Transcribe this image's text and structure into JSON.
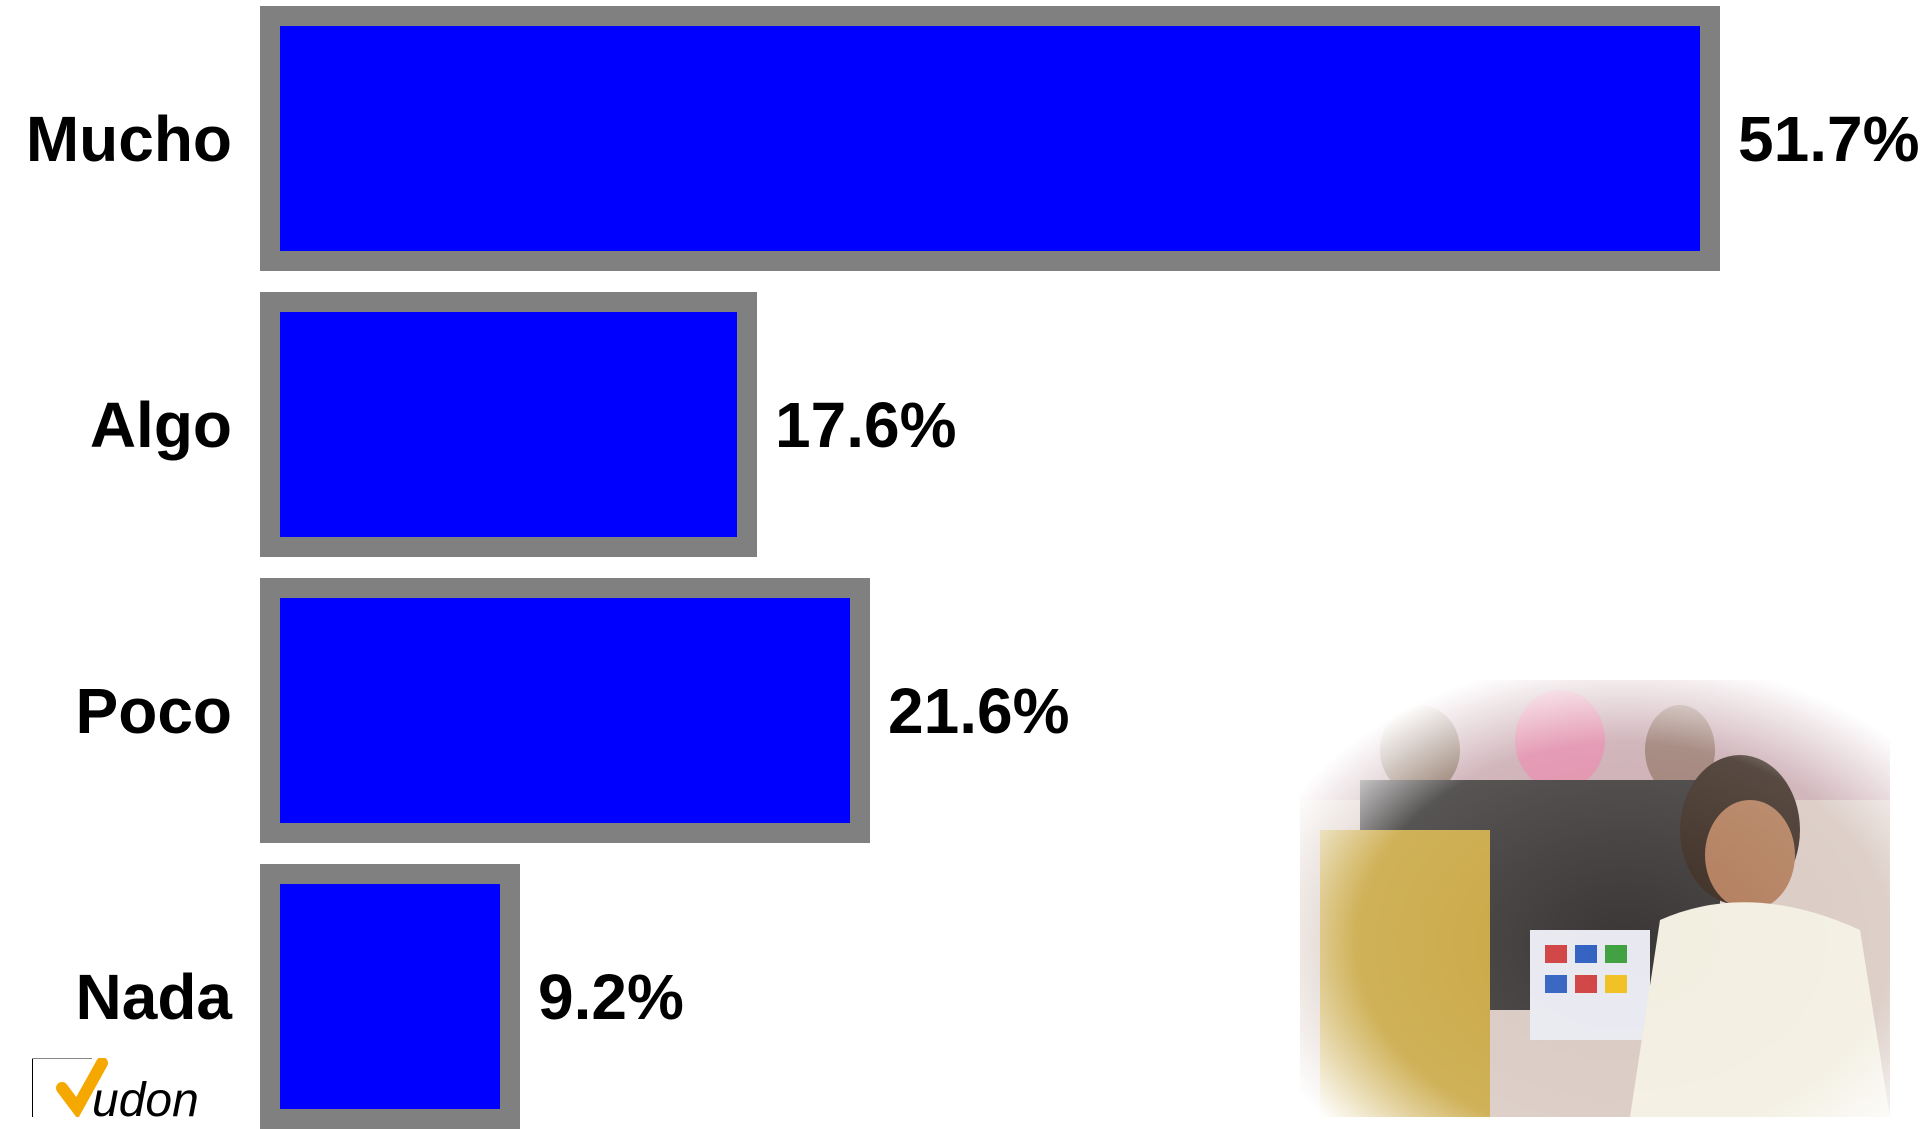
{
  "chart_data": {
    "type": "bar",
    "orientation": "horizontal",
    "categories": [
      "Mucho",
      "Algo",
      "Poco",
      "Nada"
    ],
    "values": [
      51.7,
      17.6,
      21.6,
      9.2
    ],
    "value_labels": [
      "51.7%",
      "17.6%",
      "21.6%",
      "9.2%"
    ],
    "xlim": [
      0,
      51.7
    ],
    "bar_color": "#0000ff",
    "bar_border_color": "#808080",
    "title": "",
    "xlabel": "",
    "ylabel": "",
    "grid": false
  },
  "logo": {
    "text": "udon"
  },
  "colors": {
    "bar": "#0000ff",
    "border": "#808080",
    "text": "#000000",
    "logo_accent": "#f5a800"
  }
}
